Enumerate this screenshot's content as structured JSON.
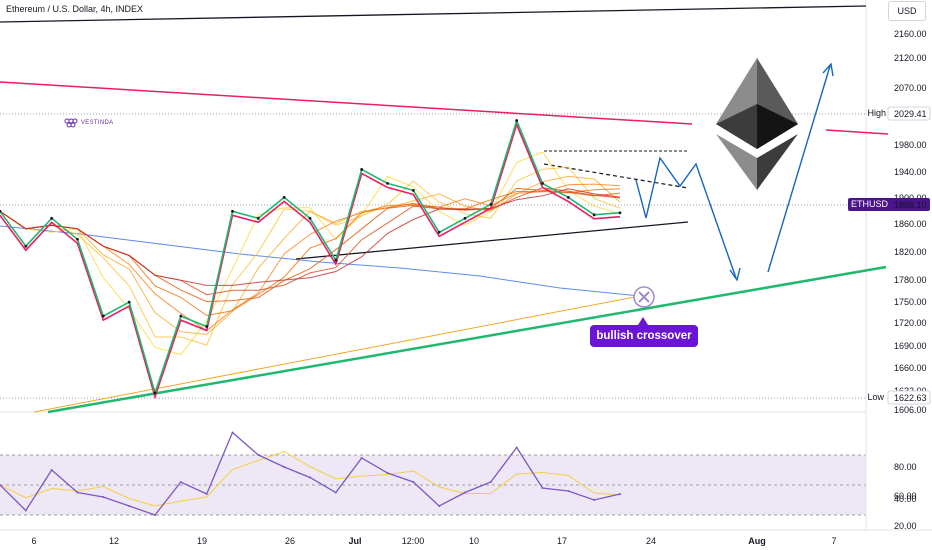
{
  "header": {
    "title": "Ethereum / U.S. Dollar, 4h, INDEX",
    "currency": "USD",
    "brand": "VESTINDA"
  },
  "colors": {
    "resistance": "#e91e63",
    "support": "#1fb86f",
    "path": "#1565c0",
    "callout": "#6a14d6",
    "ethusd_tag": "#4a148c",
    "rsi": "#7e57c2",
    "rsi_ma": "#f4d03f"
  },
  "price_axis": {
    "labels": [
      "2160.00",
      "2120.00",
      "2070.00",
      "2029.41",
      "1980.00",
      "1940.00",
      "1900.00",
      "1888.10",
      "1860.00",
      "1820.00",
      "1780.00",
      "1750.00",
      "1720.00",
      "1690.00",
      "1660.00",
      "1632.00",
      "1622.63",
      "1606.00"
    ]
  },
  "rsi_axis": {
    "labels": [
      "80.00",
      "60.00",
      "40.00",
      "20.00"
    ]
  },
  "x_axis": {
    "labels": [
      "6",
      "12",
      "19",
      "26",
      "Jul",
      "12:00",
      "10",
      "17",
      "24",
      "Aug",
      "7"
    ]
  },
  "levels": {
    "high_label": "High",
    "high_value": "2029.41",
    "low_label": "Low",
    "low_value": "1622.63",
    "current_symbol": "ETHUSD",
    "current_value": "1888.10"
  },
  "annotation": {
    "callout": "bullish crossover"
  },
  "chart_data": {
    "type": "line",
    "title": "Ethereum / U.S. Dollar, 4h, INDEX",
    "xlabel": "",
    "ylabel": "",
    "ylim": [
      1606,
      2200
    ],
    "grid": false,
    "series": [
      {
        "name": "",
        "x": [
          "Jun 3",
          "Jun 5",
          "Jun 7",
          "Jun 9",
          "Jun 11",
          "Jun 13",
          "Jun 15",
          "Jun 17",
          "Jun 19",
          "Jun 21",
          "Jun 23",
          "Jun 25",
          "Jun 27",
          "Jun 29",
          "Jul 1",
          "Jul 3",
          "Jul 5",
          "Jul 7",
          "Jul 9",
          "Jul 11",
          "Jul 13",
          "Jul 15",
          "Jul 17",
          "Jul 19",
          "Jul 21"
        ],
        "values": [
          1890,
          1840,
          1880,
          1850,
          1740,
          1760,
          1630,
          1740,
          1725,
          1890,
          1880,
          1910,
          1880,
          1820,
          1950,
          1930,
          1920,
          1860,
          1880,
          1900,
          2020,
          1930,
          1910,
          1885,
          1888
        ]
      }
    ],
    "rsi": {
      "ylim": [
        20,
        90
      ],
      "values": [
        50,
        33,
        60,
        45,
        42,
        36,
        30,
        52,
        44,
        85,
        70,
        62,
        55,
        45,
        68,
        58,
        52,
        36,
        45,
        52,
        75,
        48,
        46,
        40,
        44
      ]
    },
    "annotations": [
      "bullish crossover"
    ]
  }
}
